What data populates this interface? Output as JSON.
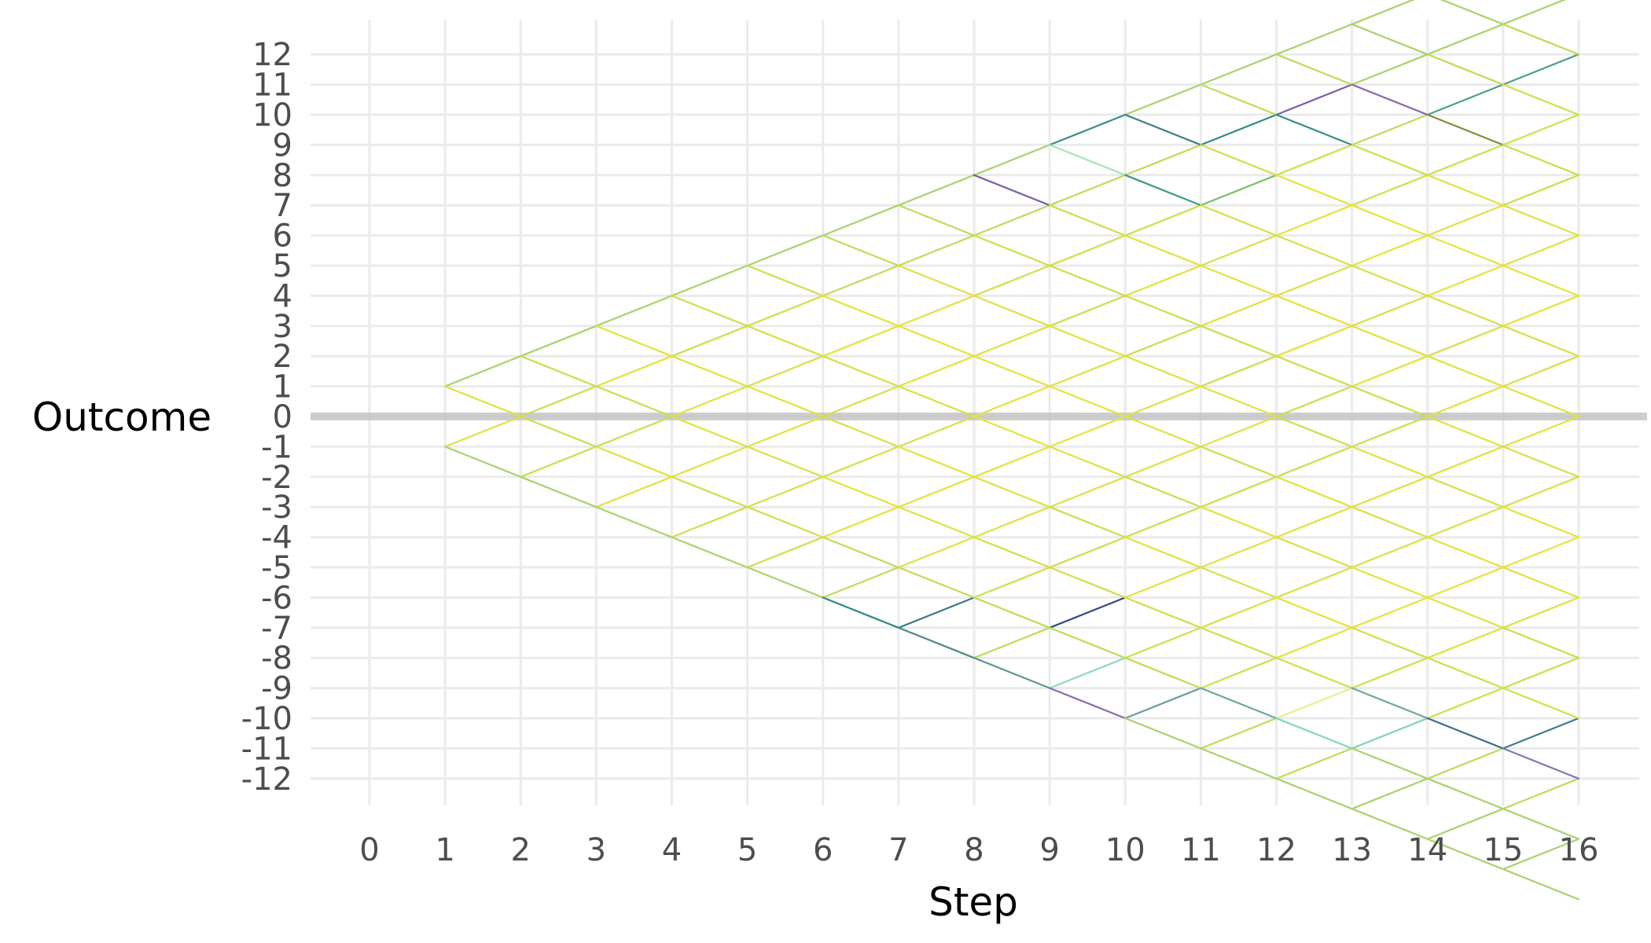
{
  "chart_data": {
    "type": "line",
    "title": "",
    "xlabel": "Step",
    "ylabel": "Outcome",
    "x_ticks": [
      "0",
      "1",
      "2",
      "3",
      "4",
      "5",
      "6",
      "7",
      "8",
      "9",
      "10",
      "11",
      "12",
      "13",
      "14",
      "15",
      "16"
    ],
    "y_ticks": [
      "-12",
      "-11",
      "-10",
      "-9",
      "-8",
      "-7",
      "-6",
      "-5",
      "-4",
      "-3",
      "-2",
      "-1",
      "0",
      "1",
      "2",
      "3",
      "4",
      "5",
      "6",
      "7",
      "8",
      "9",
      "10",
      "11",
      "12"
    ],
    "xlim": [
      0,
      16
    ],
    "ylim": [
      -12,
      12
    ],
    "grid": true,
    "legend": "none",
    "highlight_line": {
      "y": 0,
      "color": "#bebebe"
    },
    "description_of_series": "Random walk paths: each step moves +1 or -1; all edges of the lattice from step 1 to step 16 are drawn, colored by how frequently they are traversed.",
    "rare_edges": [
      {
        "from": [
          12,
          10
        ],
        "to": [
          13,
          11
        ],
        "color": "#7b5da8"
      },
      {
        "from": [
          13,
          11
        ],
        "to": [
          14,
          10
        ],
        "color": "#8a66a8"
      },
      {
        "from": [
          8,
          8
        ],
        "to": [
          9,
          7
        ],
        "color": "#7b5da8"
      },
      {
        "from": [
          9,
          9
        ],
        "to": [
          10,
          8
        ],
        "color": "#a7e3b4"
      },
      {
        "from": [
          9,
          -7
        ],
        "to": [
          10,
          -6
        ],
        "color": "#2f4d86"
      },
      {
        "from": [
          9,
          -9
        ],
        "to": [
          10,
          -10
        ],
        "color": "#8a6aac"
      },
      {
        "from": [
          9,
          -9
        ],
        "to": [
          10,
          -8
        ],
        "color": "#8fd9c0"
      },
      {
        "from": [
          12,
          -10
        ],
        "to": [
          13,
          -11
        ],
        "color": "#7ed6c4"
      },
      {
        "from": [
          13,
          -11
        ],
        "to": [
          14,
          -10
        ],
        "color": "#7fd1b8"
      },
      {
        "from": [
          12,
          -10
        ],
        "to": [
          13,
          -9
        ],
        "color": "#e3f28c"
      },
      {
        "from": [
          15,
          -11
        ],
        "to": [
          16,
          -12
        ],
        "color": "#7a7fb0"
      },
      {
        "from": [
          14,
          -10
        ],
        "to": [
          15,
          -11
        ],
        "color": "#3d6d8a"
      },
      {
        "from": [
          15,
          -11
        ],
        "to": [
          16,
          -10
        ],
        "color": "#3d7a8e"
      },
      {
        "from": [
          14,
          10
        ],
        "to": [
          15,
          9
        ],
        "color": "#8a8a3a"
      },
      {
        "from": [
          15,
          11
        ],
        "to": [
          16,
          12
        ],
        "color": "#4ea08a"
      },
      {
        "from": [
          14,
          10
        ],
        "to": [
          15,
          11
        ],
        "color": "#4ea08a"
      },
      {
        "from": [
          9,
          9
        ],
        "to": [
          10,
          10
        ],
        "color": "#3e8a8a"
      },
      {
        "from": [
          10,
          10
        ],
        "to": [
          11,
          9
        ],
        "color": "#3e7e8a"
      },
      {
        "from": [
          11,
          9
        ],
        "to": [
          12,
          10
        ],
        "color": "#2e8a86"
      },
      {
        "from": [
          12,
          10
        ],
        "to": [
          13,
          9
        ],
        "color": "#3a8c86"
      },
      {
        "from": [
          6,
          -6
        ],
        "to": [
          7,
          -7
        ],
        "color": "#2e8a86"
      },
      {
        "from": [
          7,
          -7
        ],
        "to": [
          8,
          -6
        ],
        "color": "#3a7a8a"
      },
      {
        "from": [
          7,
          -7
        ],
        "to": [
          8,
          -8
        ],
        "color": "#4e8a8a"
      },
      {
        "from": [
          8,
          -8
        ],
        "to": [
          9,
          -9
        ],
        "color": "#5a9a90"
      },
      {
        "from": [
          10,
          -10
        ],
        "to": [
          11,
          -9
        ],
        "color": "#6a9aa0"
      },
      {
        "from": [
          11,
          -9
        ],
        "to": [
          12,
          -10
        ],
        "color": "#6aa8a0"
      },
      {
        "from": [
          13,
          -11
        ],
        "to": [
          14,
          -10
        ],
        "color": "#7fd1b8"
      },
      {
        "from": [
          13,
          -9
        ],
        "to": [
          14,
          -10
        ],
        "color": "#6aa8a0"
      },
      {
        "from": [
          10,
          8
        ],
        "to": [
          11,
          7
        ],
        "color": "#3e9a86"
      },
      {
        "from": [
          11,
          7
        ],
        "to": [
          12,
          8
        ],
        "color": "#7abf6a"
      }
    ]
  }
}
